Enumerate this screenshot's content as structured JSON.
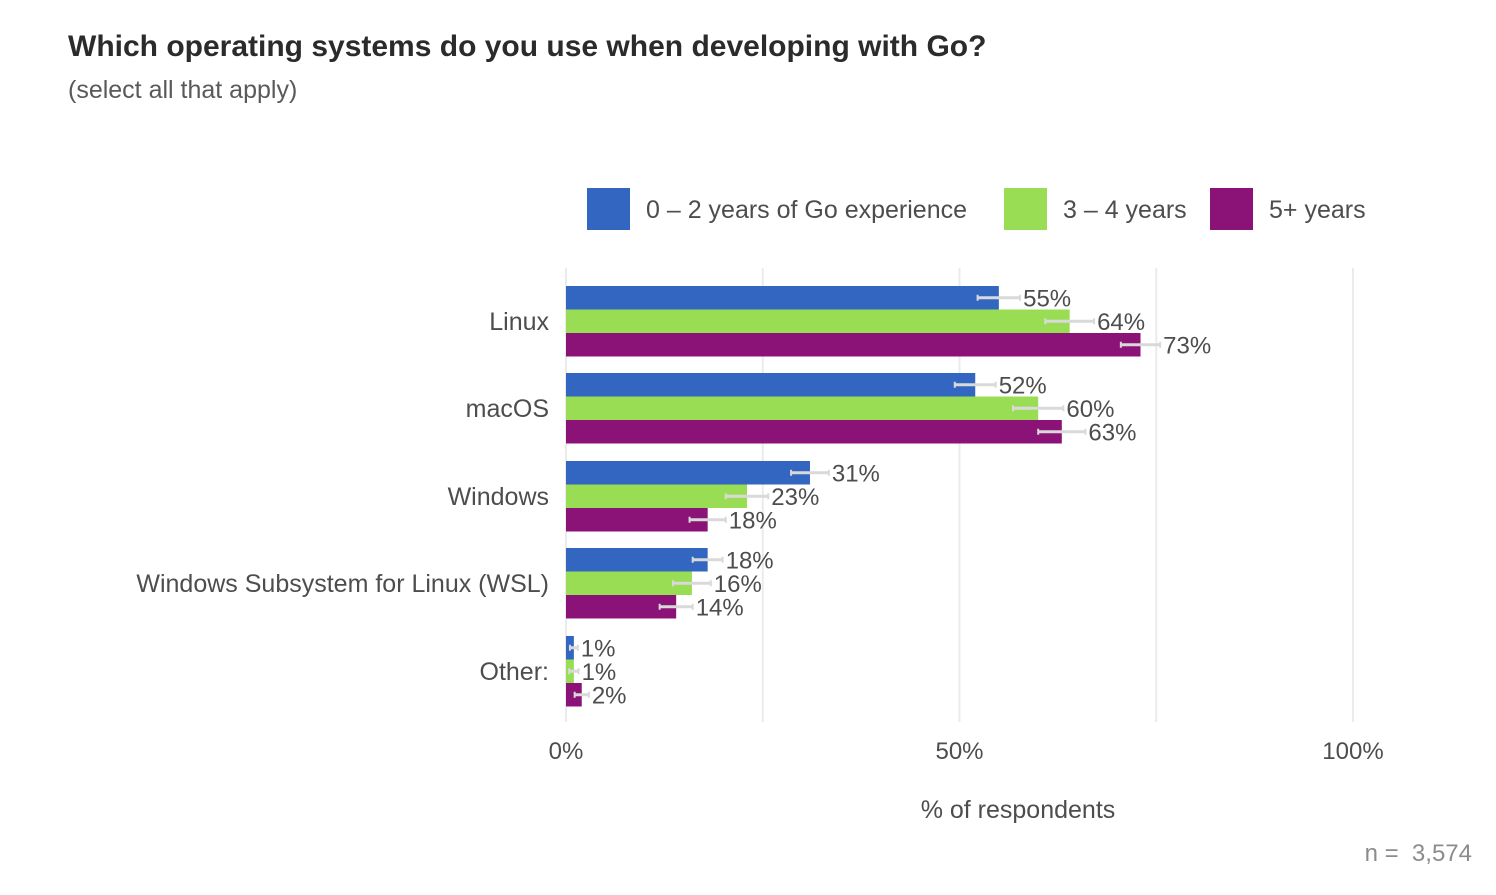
{
  "chart_data": {
    "type": "bar",
    "orientation": "horizontal",
    "title": "Which operating systems do you use when developing with Go?",
    "subtitle": "(select all that apply)",
    "xlabel": "% of respondents",
    "ylabel": "",
    "xlim": [
      0,
      100
    ],
    "x_ticks": [
      0,
      50,
      100
    ],
    "x_tick_labels": [
      "0%",
      "50%",
      "100%"
    ],
    "grid": true,
    "legend_position": "top-right",
    "categories": [
      "Linux",
      "macOS",
      "Windows",
      "Windows Subsystem for Linux (WSL)",
      "Other:"
    ],
    "series": [
      {
        "name": "0 – 2 years of Go experience",
        "color": "#3366c0",
        "values": [
          55,
          52,
          31,
          18,
          1
        ],
        "labels": [
          "55%",
          "52%",
          "31%",
          "18%",
          "1%"
        ],
        "error_margin": [
          2.7,
          2.6,
          2.4,
          1.9,
          0.5
        ]
      },
      {
        "name": "3 – 4 years",
        "color": "#99dd55",
        "values": [
          64,
          60,
          23,
          16,
          1
        ],
        "labels": [
          "64%",
          "60%",
          "23%",
          "16%",
          "1%"
        ],
        "error_margin": [
          3.1,
          3.2,
          2.7,
          2.4,
          0.6
        ]
      },
      {
        "name": "5+ years",
        "color": "#8b1378",
        "values": [
          73,
          63,
          18,
          14,
          2
        ],
        "labels": [
          "73%",
          "63%",
          "18%",
          "14%",
          "2%"
        ],
        "error_margin": [
          2.5,
          3.0,
          2.3,
          2.1,
          0.9
        ]
      }
    ],
    "error_bar_color": "#d9d9d9",
    "footnote": "n =  3,574"
  }
}
